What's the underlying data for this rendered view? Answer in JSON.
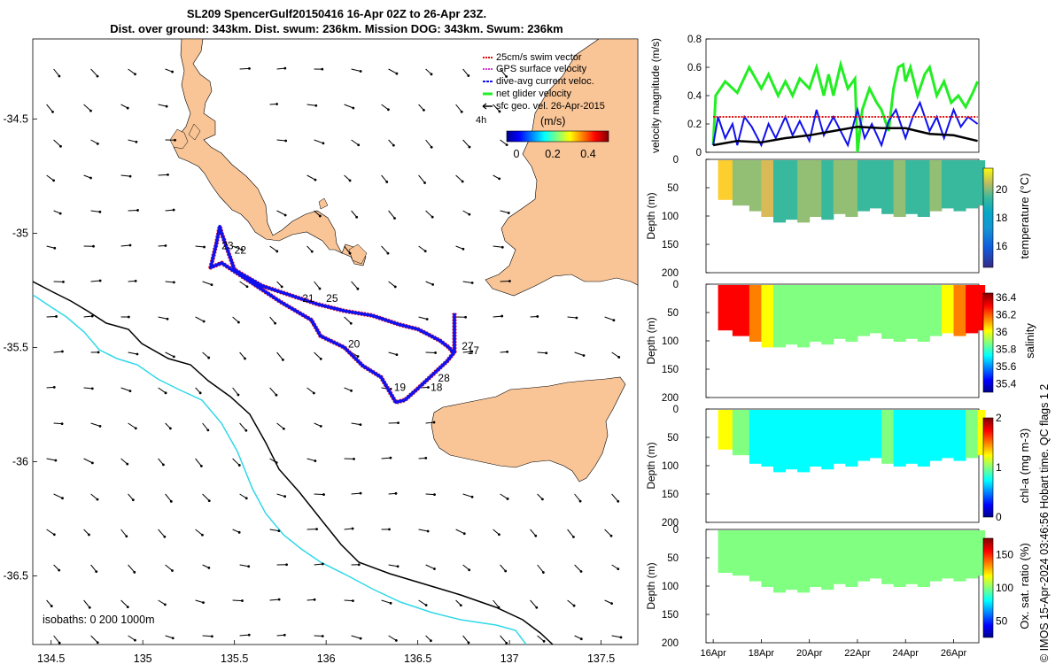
{
  "title_line1": "SL209 SpencerGulf20150416 16-Apr 02Z to 26-Apr 23Z.",
  "title_line2": "Dist. over ground: 343km. Dist. swum: 236km. Mission DOG: 343km. Swum: 236km",
  "credit": "© IMOS 15-Apr-2024 03:46:56 Hobart time. QC flags 1  2",
  "colors": {
    "land": "#f9c597",
    "swim": "#e01010",
    "gps": "#d040d0",
    "dive_avg": "#1010ee",
    "net": "#22ee22",
    "geo": "#000000",
    "isobath_200": "#000000",
    "isobath_1000": "#30d8e8"
  },
  "chart_data": [
    {
      "type": "scatter",
      "xlim": [
        134.4,
        137.7
      ],
      "ylim": [
        -36.8,
        -34.15
      ],
      "x_ticks": [
        "134.5",
        "135",
        "135.5",
        "136",
        "136.5",
        "137",
        "137.5"
      ],
      "y_ticks": [
        "-34.5",
        "-35",
        "-35.5",
        "-36",
        "-36.5"
      ],
      "legend": [
        "25cm/s swim vector",
        "GPS surface velocity",
        "dive-avg current veloc.",
        "net glider velocity",
        "sfc geo. vel. 26-Apr-2015"
      ],
      "legend_placement": "top-right",
      "scale_label": "4h",
      "colorbar": {
        "label": "(m/s)",
        "ticks": [
          "0",
          "0.2",
          "0.4"
        ],
        "range": [
          0,
          0.5
        ]
      },
      "isobath_note": "isobaths: 0   200  1000m",
      "day_labels": [
        {
          "text": "23",
          "lon": 135.43,
          "lat": -35.07
        },
        {
          "text": "22",
          "lon": 135.5,
          "lat": -35.09
        },
        {
          "text": "21",
          "lon": 135.87,
          "lat": -35.3
        },
        {
          "text": "25",
          "lon": 136.0,
          "lat": -35.3
        },
        {
          "text": "20",
          "lon": 136.12,
          "lat": -35.5
        },
        {
          "text": "27",
          "lon": 136.74,
          "lat": -35.51
        },
        {
          "text": "17",
          "lon": 136.77,
          "lat": -35.53
        },
        {
          "text": "28",
          "lon": 136.61,
          "lat": -35.65
        },
        {
          "text": "19",
          "lon": 136.37,
          "lat": -35.69
        },
        {
          "text": "18",
          "lon": 136.57,
          "lat": -35.69
        }
      ],
      "track": {
        "lon": [
          136.7,
          136.7,
          136.66,
          136.58,
          136.5,
          136.43,
          136.38,
          136.3,
          136.2,
          136.1,
          135.97,
          135.92,
          135.75,
          135.6,
          135.43,
          135.37,
          135.4,
          135.42,
          135.43,
          135.5,
          135.65,
          135.8,
          135.95,
          136.1,
          136.25,
          136.4,
          136.5,
          136.55,
          136.62,
          136.67,
          136.7
        ],
        "lat": [
          -35.35,
          -35.52,
          -35.56,
          -35.62,
          -35.68,
          -35.73,
          -35.74,
          -35.63,
          -35.58,
          -35.5,
          -35.45,
          -35.38,
          -35.3,
          -35.22,
          -35.13,
          -35.15,
          -35.05,
          -34.97,
          -35.0,
          -35.16,
          -35.23,
          -35.27,
          -35.31,
          -35.34,
          -35.36,
          -35.4,
          -35.42,
          -35.44,
          -35.47,
          -35.5,
          -35.53
        ]
      }
    },
    {
      "type": "line",
      "ylabel": "velocity magnitude (m/s)",
      "ylim": [
        0,
        0.8
      ],
      "y_ticks": [
        "0",
        "0.2",
        "0.4",
        "0.6",
        "0.8"
      ],
      "xlim": [
        15.7,
        27.05
      ],
      "series": [
        {
          "name": "net glider velocity",
          "color": "#22ee22",
          "x": [
            16.0,
            16.1,
            16.5,
            17.0,
            17.5,
            18.0,
            18.3,
            18.7,
            19.0,
            19.3,
            19.6,
            20.0,
            20.3,
            20.6,
            20.8,
            21.0,
            21.3,
            21.6,
            21.9,
            22.0,
            22.2,
            22.5,
            22.8,
            23.0,
            23.3,
            23.5,
            23.7,
            23.9,
            24.0,
            24.2,
            24.5,
            24.8,
            25.0,
            25.3,
            25.6,
            25.9,
            26.2,
            26.5,
            26.8,
            27.0
          ],
          "values": [
            0.05,
            0.4,
            0.5,
            0.42,
            0.6,
            0.45,
            0.55,
            0.4,
            0.5,
            0.4,
            0.52,
            0.45,
            0.6,
            0.4,
            0.55,
            0.4,
            0.62,
            0.45,
            0.52,
            0.0,
            0.3,
            0.45,
            0.35,
            0.3,
            0.15,
            0.45,
            0.6,
            0.62,
            0.5,
            0.6,
            0.4,
            0.55,
            0.6,
            0.4,
            0.5,
            0.35,
            0.4,
            0.32,
            0.42,
            0.5
          ]
        },
        {
          "name": "dive-avg current veloc.",
          "color": "#1010ee",
          "x": [
            16.0,
            16.2,
            16.5,
            16.8,
            17.0,
            17.3,
            17.6,
            18.0,
            18.3,
            18.6,
            19.0,
            19.3,
            19.6,
            20.0,
            20.3,
            20.6,
            21.0,
            21.3,
            21.6,
            22.0,
            22.3,
            22.6,
            23.0,
            23.3,
            23.6,
            24.0,
            24.3,
            24.6,
            25.0,
            25.3,
            25.6,
            26.0,
            26.3,
            26.6,
            27.0
          ],
          "values": [
            0.05,
            0.25,
            0.1,
            0.2,
            0.05,
            0.25,
            0.18,
            0.05,
            0.2,
            0.1,
            0.25,
            0.12,
            0.22,
            0.08,
            0.3,
            0.12,
            0.25,
            0.15,
            0.05,
            0.3,
            0.1,
            0.2,
            0.05,
            0.22,
            0.3,
            0.1,
            0.25,
            0.35,
            0.15,
            0.25,
            0.1,
            0.3,
            0.18,
            0.25,
            0.2
          ]
        },
        {
          "name": "25cm/s swim vector",
          "color": "#e01010",
          "x": [
            16.0,
            27.0
          ],
          "values": [
            0.25,
            0.25
          ]
        },
        {
          "name": "sfc geo. vel. 26-Apr-2015",
          "color": "#000000",
          "x": [
            16.0,
            17.0,
            18.0,
            19.0,
            20.0,
            21.0,
            22.0,
            23.0,
            24.0,
            25.0,
            26.0,
            27.0
          ],
          "values": [
            0.05,
            0.08,
            0.07,
            0.1,
            0.12,
            0.15,
            0.18,
            0.17,
            0.17,
            0.13,
            0.12,
            0.08
          ]
        }
      ]
    },
    {
      "type": "heatmap",
      "ylabel": "Depth (m)",
      "colorbar_label": "temperature (°C)",
      "y_ticks": [
        "0",
        "50",
        "100",
        "150",
        "200"
      ],
      "colorbar_ticks": [
        "16",
        "18",
        "20"
      ],
      "colorbar_range": [
        14.5,
        21.5
      ],
      "depth_profile": {
        "x": [
          16.2,
          16.8,
          17.5,
          18.0,
          18.5,
          19.0,
          19.5,
          20.0,
          20.5,
          21.0,
          21.5,
          22.0,
          22.5,
          23.0,
          23.5,
          24.0,
          24.5,
          25.0,
          25.5,
          26.0,
          26.5,
          27.0
        ],
        "max_depth": [
          70,
          80,
          90,
          100,
          110,
          105,
          110,
          100,
          105,
          95,
          100,
          90,
          85,
          95,
          100,
          95,
          100,
          90,
          85,
          90,
          85,
          80
        ]
      },
      "columns": [
        20.2,
        19.3,
        18.7,
        19.4,
        18.4,
        18.2,
        18.6,
        19.1,
        18.4,
        18.8,
        18.6,
        18.3,
        18.1,
        18.4,
        18.7,
        18.3,
        18.2,
        18.5,
        18.0,
        17.9,
        18.1,
        18.4
      ]
    },
    {
      "type": "heatmap",
      "ylabel": "Depth (m)",
      "colorbar_label": "salinity",
      "y_ticks": [
        "0",
        "50",
        "100",
        "150",
        "200"
      ],
      "colorbar_ticks": [
        "35.4",
        "35.6",
        "35.8",
        "36",
        "36.2",
        "36.4"
      ],
      "colorbar_range": [
        35.3,
        36.45
      ],
      "depth_profile": {
        "x": [
          16.2,
          16.8,
          17.5,
          18.0,
          18.5,
          19.0,
          19.5,
          20.0,
          20.5,
          21.0,
          21.5,
          22.0,
          22.5,
          23.0,
          23.5,
          24.0,
          24.5,
          25.0,
          25.5,
          26.0,
          26.5,
          27.0
        ],
        "max_depth": [
          80,
          90,
          100,
          110,
          110,
          105,
          110,
          100,
          105,
          95,
          100,
          90,
          85,
          95,
          100,
          95,
          100,
          90,
          85,
          90,
          85,
          80
        ]
      },
      "columns": [
        36.25,
        36.3,
        36.1,
        35.95,
        35.85,
        35.9,
        35.88,
        35.9,
        35.87,
        35.89,
        35.88,
        35.9,
        35.87,
        35.9,
        35.88,
        35.9,
        35.88,
        35.92,
        36.0,
        36.1,
        36.3,
        36.35
      ]
    },
    {
      "type": "heatmap",
      "ylabel": "Depth (m)",
      "colorbar_label": "chl-a (mg m-3)",
      "y_ticks": [
        "0",
        "50",
        "100",
        "150",
        "200"
      ],
      "colorbar_ticks": [
        "0",
        "1",
        "2"
      ],
      "colorbar_range": [
        0,
        2
      ],
      "depth_profile": {
        "x": [
          16.2,
          16.8,
          17.5,
          18.0,
          18.5,
          19.0,
          19.5,
          20.0,
          20.5,
          21.0,
          21.5,
          22.0,
          22.5,
          23.0,
          23.5,
          24.0,
          24.5,
          25.0,
          25.5,
          26.0,
          26.5,
          27.0
        ],
        "max_depth": [
          70,
          80,
          95,
          100,
          110,
          105,
          110,
          100,
          105,
          95,
          100,
          90,
          85,
          95,
          100,
          95,
          100,
          90,
          85,
          90,
          85,
          80
        ]
      },
      "columns": [
        1.2,
        0.9,
        0.8,
        0.85,
        0.75,
        0.8,
        0.85,
        0.75,
        0.8,
        0.78,
        0.82,
        0.76,
        0.8,
        0.9,
        0.85,
        0.8,
        0.78,
        0.82,
        0.8,
        0.85,
        1.1,
        1.2
      ]
    },
    {
      "type": "heatmap",
      "ylabel": "Depth (m)",
      "colorbar_label": "Ox. sat. ratio (%)",
      "y_ticks": [
        "0",
        "50",
        "100",
        "150",
        "200"
      ],
      "colorbar_ticks": [
        "50",
        "100",
        "150"
      ],
      "colorbar_range": [
        25,
        175
      ],
      "depth_profile": {
        "x": [
          16.2,
          16.8,
          17.5,
          18.0,
          18.5,
          19.0,
          19.5,
          20.0,
          20.5,
          21.0,
          21.5,
          22.0,
          22.5,
          23.0,
          23.5,
          24.0,
          24.5,
          25.0,
          25.5,
          26.0,
          26.5,
          27.0
        ],
        "max_depth": [
          75,
          80,
          90,
          100,
          110,
          105,
          110,
          100,
          105,
          95,
          100,
          90,
          85,
          95,
          100,
          95,
          100,
          90,
          85,
          90,
          85,
          80
        ]
      },
      "columns": [
        105,
        104,
        103,
        104,
        103,
        104,
        105,
        104,
        103,
        104,
        104,
        105,
        103,
        104,
        103,
        104,
        105,
        104,
        103,
        104,
        103,
        104
      ],
      "x_ticks": [
        "16Apr",
        "18Apr",
        "20Apr",
        "22Apr",
        "24Apr",
        "26Apr"
      ],
      "x_tick_values": [
        16,
        18,
        20,
        22,
        24,
        26
      ]
    }
  ]
}
